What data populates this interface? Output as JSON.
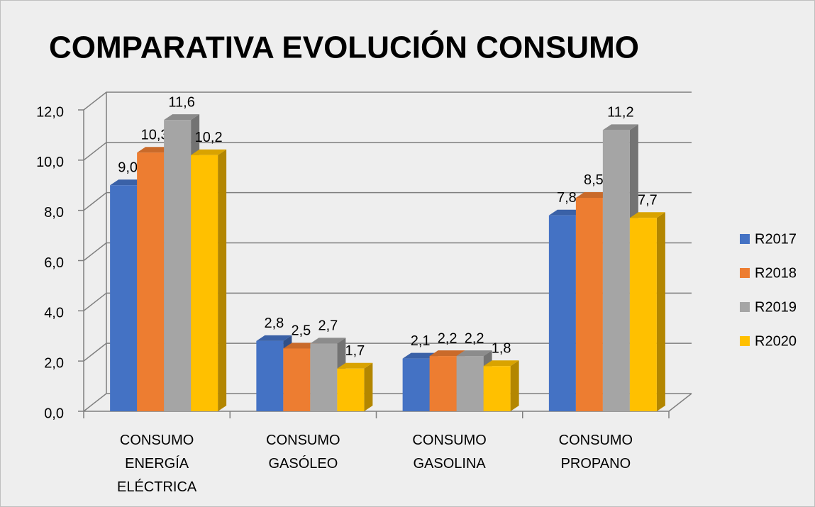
{
  "chart_data": {
    "type": "bar3d",
    "title": "COMPARATIVA EVOLUCIÓN CONSUMO",
    "categories": [
      "CONSUMO ENERGÍA ELÉCTRICA",
      "CONSUMO GASÓLEO",
      "CONSUMO GASOLINA",
      "CONSUMO PROPANO"
    ],
    "series": [
      {
        "name": "R2017",
        "color": "#4472c4",
        "values": [
          9.0,
          2.8,
          2.1,
          7.8
        ],
        "value_labels": [
          "9,0",
          "2,8",
          "2,1",
          "7,8"
        ]
      },
      {
        "name": "R2018",
        "color": "#ed7d31",
        "values": [
          10.3,
          2.5,
          2.2,
          8.5
        ],
        "value_labels": [
          "10,3",
          "2,5",
          "2,2",
          "8,5"
        ]
      },
      {
        "name": "R2019",
        "color": "#a5a5a5",
        "values": [
          11.6,
          2.7,
          2.2,
          11.2
        ],
        "value_labels": [
          "11,6",
          "2,7",
          "2,2",
          "11,2"
        ]
      },
      {
        "name": "R2020",
        "color": "#ffc000",
        "values": [
          10.2,
          1.7,
          1.8,
          7.7
        ],
        "value_labels": [
          "10,2",
          "1,7",
          "1,8",
          "7,7"
        ]
      }
    ],
    "ylim": [
      0,
      12
    ],
    "yticks": [
      {
        "value": 0,
        "label": "0,0"
      },
      {
        "value": 2,
        "label": "2,0"
      },
      {
        "value": 4,
        "label": "4,0"
      },
      {
        "value": 6,
        "label": "6,0"
      },
      {
        "value": 8,
        "label": "8,0"
      },
      {
        "value": 10,
        "label": "10,0"
      },
      {
        "value": 12,
        "label": "12,0"
      }
    ],
    "grid": true,
    "legend": "right"
  }
}
